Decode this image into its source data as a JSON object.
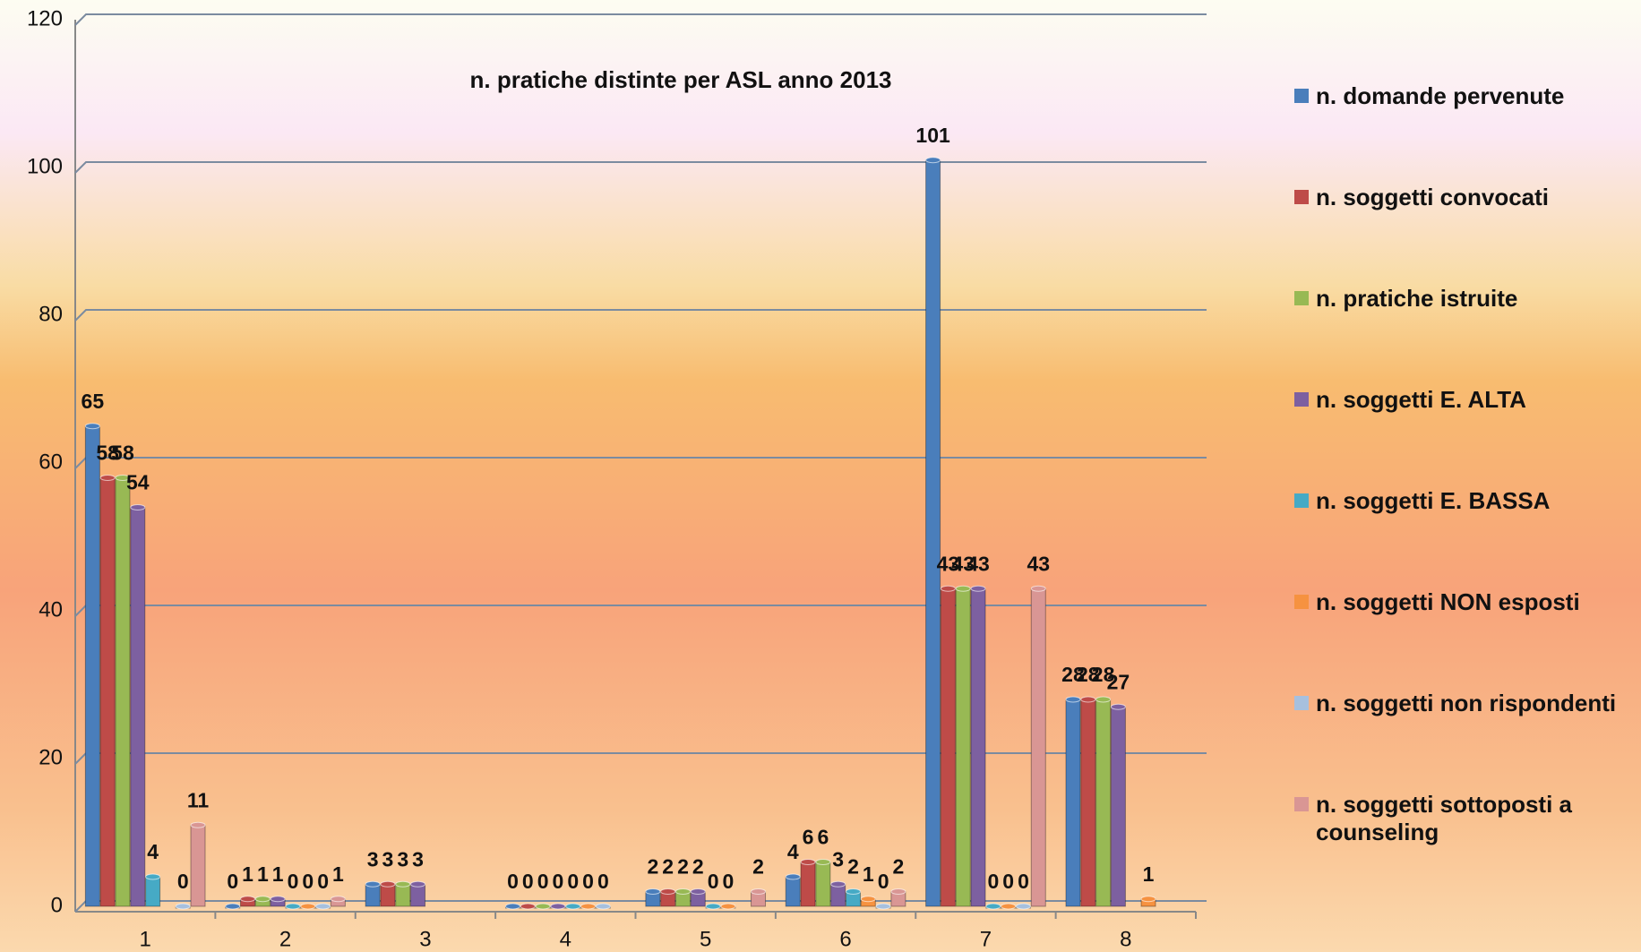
{
  "chart_data": {
    "type": "bar",
    "title": "n. pratiche distinte per ASL anno 2013",
    "categories": [
      "1",
      "2",
      "3",
      "4",
      "5",
      "6",
      "7",
      "8"
    ],
    "series": [
      {
        "name": "n. domande pervenute",
        "color": "#4a7ebb",
        "values": [
          65,
          0,
          3,
          0,
          2,
          4,
          101,
          28
        ]
      },
      {
        "name": "n. soggetti convocati",
        "color": "#be4b48",
        "values": [
          58,
          1,
          3,
          0,
          2,
          6,
          43,
          28
        ]
      },
      {
        "name": "n. pratiche istruite",
        "color": "#98b954",
        "values": [
          58,
          1,
          3,
          0,
          2,
          6,
          43,
          28
        ]
      },
      {
        "name": "n. soggetti E.  ALTA",
        "color": "#7d60a0",
        "values": [
          54,
          1,
          3,
          0,
          2,
          3,
          43,
          27
        ]
      },
      {
        "name": "n. soggetti E. BASSA",
        "color": "#46aac5",
        "values": [
          4,
          0,
          null,
          0,
          0,
          2,
          0,
          null
        ]
      },
      {
        "name": "n. soggetti NON esposti",
        "color": "#f69240",
        "values": [
          null,
          0,
          null,
          0,
          0,
          1,
          0,
          1
        ]
      },
      {
        "name": "n. soggetti non rispondenti",
        "color": "#a7c0de",
        "values": [
          0,
          0,
          null,
          0,
          null,
          0,
          0,
          null
        ]
      },
      {
        "name": "n. soggetti sottoposti a counseling",
        "color": "#d99694",
        "values": [
          11,
          1,
          null,
          null,
          2,
          2,
          43,
          null
        ]
      }
    ],
    "ylim": [
      0,
      120
    ],
    "yticks": [
      0,
      20,
      40,
      60,
      80,
      100,
      120
    ],
    "grid": true,
    "legend": "right"
  }
}
